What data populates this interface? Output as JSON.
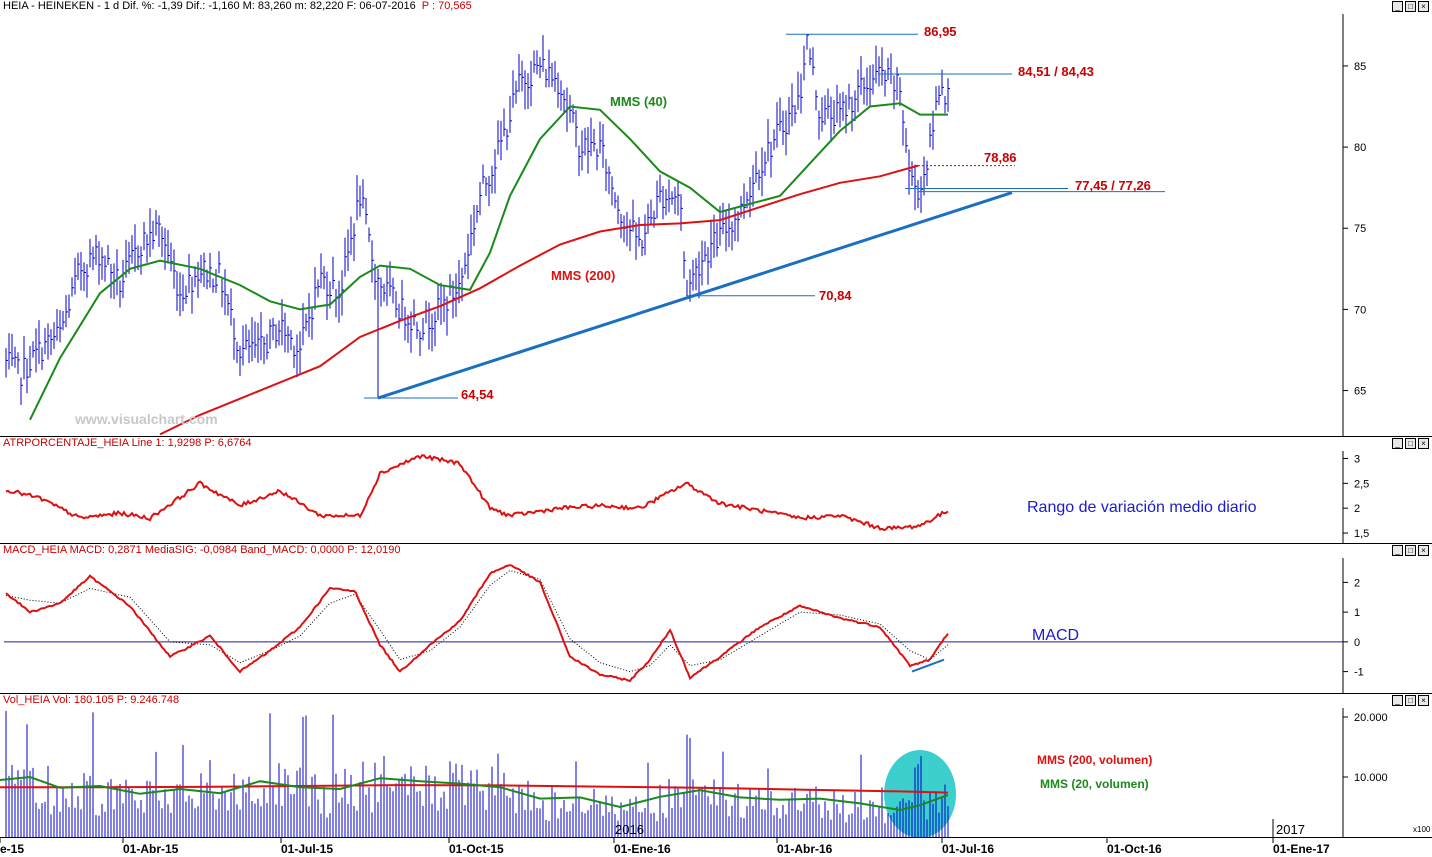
{
  "panes": {
    "price": {
      "header_text": "HEIA - HEINEKEN -  1 d  Dif. %: -1,39  Dif.: -1,160  M: 83,260  m: 82,220  F: 06-07-2016",
      "header_p": "P : 70,565",
      "watermark": "www.visualchart.com",
      "ma40_label": "MMS (40)",
      "ma200_label": "MMS (200)",
      "levels": [
        "86,95",
        "84,51 / 84,43",
        "78,86",
        "77,45 / 77,26",
        "70,84",
        "64,54"
      ]
    },
    "atr": {
      "header_text": "ATRPORCENTAJE_HEIA  Line 1: 1,9298  P: 6,6764",
      "annotation": "Rango de variación medio diario"
    },
    "macd": {
      "header_text": "MACD_HEIA  MACD: 0,2871  MediaSIG: -0,0984  Band_MACD: 0,0000  P: 12,0190",
      "annotation": "MACD"
    },
    "volume": {
      "header_text": "Vol_HEIA  Vol: 180.105  P: 9.246.748",
      "ma200_label": "MMS (200, volumen)",
      "ma20_label": "MMS (20, volumen)",
      "year_label_2016": "2016",
      "year_label_2017": "2017",
      "scale_note": "x100"
    }
  },
  "x_axis": [
    "e-15",
    "01-Abr-15",
    "01-Jul-15",
    "01-Oct-15",
    "01-Ene-16",
    "01-Abr-16",
    "01-Jul-16",
    "01-Oct-16",
    "01-Ene-17"
  ],
  "colors": {
    "bars": "#0000cc",
    "ma40": "#1a8a1a",
    "ma200": "#dd1111",
    "trend": "#1a6fc0",
    "header": "#cc0000",
    "cyan": "#1bc6c6"
  },
  "chart_data": [
    {
      "type": "line",
      "name": "price",
      "y_ticks": [
        "85",
        "80",
        "75",
        "70",
        "65"
      ],
      "y_range": [
        62.2,
        88.2
      ],
      "price_path_x": [
        0,
        20,
        40,
        60,
        80,
        100,
        120,
        140,
        160,
        180,
        200,
        220,
        240,
        260,
        280,
        300,
        320,
        340,
        360,
        376,
        400,
        420,
        440,
        460,
        480,
        500,
        520,
        540,
        560,
        580,
        600,
        620,
        640,
        660,
        680,
        686,
        700,
        720,
        740,
        760,
        780,
        800,
        806,
        820,
        840,
        860,
        880,
        900,
        910,
        920,
        930,
        940,
        948
      ],
      "price_path_y": [
        67,
        66,
        67.5,
        68.5,
        72.5,
        73.5,
        71.5,
        74,
        75,
        71,
        72.5,
        72,
        67.5,
        67.5,
        69,
        67.5,
        72,
        71,
        77,
        72,
        70,
        69,
        70,
        71.5,
        77,
        80,
        84,
        85,
        84,
        80,
        80,
        76,
        74,
        77,
        77,
        71,
        73,
        74.5,
        76,
        79,
        81,
        83,
        86.95,
        82,
        82,
        83.5,
        84.5,
        83.5,
        78,
        77.3,
        80,
        84.2,
        83
      ],
      "ma40_x": [
        30,
        60,
        100,
        130,
        160,
        200,
        240,
        270,
        300,
        330,
        360,
        380,
        410,
        440,
        470,
        490,
        510,
        540,
        570,
        600,
        630,
        660,
        690,
        720,
        750,
        780,
        810,
        840,
        870,
        900,
        920,
        948
      ],
      "ma40_y": [
        63.2,
        67,
        71,
        72.5,
        73,
        72.5,
        71.5,
        70.5,
        70,
        70.3,
        72,
        72.7,
        72.5,
        71.5,
        71.2,
        73.5,
        77,
        80.5,
        82.5,
        82.3,
        80.5,
        78.5,
        77.5,
        76,
        76.5,
        77,
        79,
        81,
        82.5,
        82.7,
        82,
        82
      ],
      "ma200_x": [
        160,
        200,
        240,
        280,
        320,
        360,
        400,
        440,
        480,
        520,
        560,
        600,
        640,
        680,
        720,
        760,
        800,
        840,
        880,
        918
      ],
      "ma200_y": [
        62.3,
        63.5,
        64.5,
        65.5,
        66.5,
        68.3,
        69.3,
        70.2,
        71.3,
        72.7,
        74,
        74.8,
        75.2,
        75.3,
        75.5,
        76.3,
        77.1,
        77.8,
        78.2,
        78.86
      ],
      "trend_x": [
        378,
        1012
      ],
      "trend_y": [
        64.54,
        77.2
      ]
    },
    {
      "type": "line",
      "name": "atr",
      "y_ticks": [
        "3",
        "2,5",
        "2",
        "1,5"
      ],
      "y_range": [
        1.3,
        3.15
      ],
      "x": [
        0,
        40,
        80,
        120,
        150,
        200,
        240,
        280,
        320,
        360,
        380,
        420,
        460,
        490,
        510,
        560,
        600,
        640,
        686,
        720,
        760,
        800,
        840,
        880,
        900,
        920,
        948
      ],
      "y": [
        2.4,
        2.2,
        1.8,
        1.9,
        1.8,
        2.5,
        2.05,
        2.35,
        1.85,
        1.85,
        2.7,
        3.05,
        2.9,
        2.0,
        1.85,
        2.0,
        2.05,
        2.0,
        2.5,
        2.1,
        1.95,
        1.8,
        1.85,
        1.6,
        1.6,
        1.65,
        1.95
      ]
    },
    {
      "type": "line",
      "name": "macd",
      "y_ticks": [
        "2",
        "1",
        "0",
        "-1"
      ],
      "y_range": [
        -1.72,
        2.82
      ],
      "zero_line": 0,
      "macd_x": [
        0,
        30,
        60,
        90,
        130,
        170,
        210,
        240,
        270,
        300,
        330,
        355,
        380,
        400,
        430,
        460,
        490,
        510,
        540,
        570,
        600,
        630,
        650,
        670,
        690,
        720,
        760,
        800,
        840,
        880,
        910,
        930,
        948
      ],
      "macd_y": [
        1.8,
        1.0,
        1.3,
        2.2,
        1.2,
        -0.5,
        0.2,
        -1.0,
        -0.3,
        0.5,
        1.8,
        1.7,
        -0.1,
        -1.0,
        -0.1,
        0.7,
        2.3,
        2.6,
        2.0,
        -0.5,
        -1.1,
        -1.3,
        -0.6,
        0.4,
        -1.2,
        -0.5,
        0.5,
        1.2,
        0.8,
        0.5,
        -0.8,
        -0.6,
        0.3
      ],
      "signal_x": [
        0,
        30,
        60,
        90,
        130,
        170,
        210,
        240,
        270,
        300,
        330,
        355,
        380,
        400,
        430,
        460,
        490,
        510,
        540,
        570,
        600,
        630,
        650,
        670,
        690,
        720,
        760,
        800,
        840,
        880,
        910,
        930,
        948
      ],
      "signal_y": [
        1.6,
        1.4,
        1.3,
        1.8,
        1.5,
        0.0,
        -0.1,
        -0.7,
        -0.3,
        0.2,
        1.3,
        1.6,
        0.4,
        -0.6,
        -0.3,
        0.5,
        1.9,
        2.4,
        2.1,
        0.1,
        -0.7,
        -1.0,
        -0.8,
        -0.1,
        -0.8,
        -0.6,
        0.2,
        1.0,
        0.9,
        0.6,
        -0.3,
        -0.6,
        -0.1
      ],
      "div_x": [
        912,
        944
      ],
      "div_y": [
        -1.0,
        -0.6
      ]
    },
    {
      "type": "bar",
      "name": "volume",
      "y_ticks": [
        "20.000",
        "10.000"
      ],
      "y_range": [
        0,
        21500
      ],
      "ma200_x": [
        0,
        100,
        200,
        300,
        400,
        500,
        600,
        700,
        800,
        900,
        948
      ],
      "ma200_y": [
        8300,
        8300,
        8350,
        8500,
        8650,
        8600,
        8400,
        8200,
        7900,
        7600,
        7400
      ],
      "ma20_x": [
        0,
        30,
        60,
        100,
        140,
        180,
        220,
        260,
        300,
        340,
        380,
        420,
        460,
        500,
        540,
        580,
        620,
        660,
        700,
        740,
        780,
        820,
        860,
        900,
        920,
        948
      ],
      "ma20_y": [
        9500,
        10000,
        8200,
        8500,
        7200,
        8000,
        7300,
        9300,
        8300,
        8000,
        9800,
        9300,
        8900,
        8300,
        6400,
        6600,
        5000,
        6700,
        7800,
        6600,
        6200,
        6400,
        5600,
        4500,
        5300,
        7000
      ]
    }
  ]
}
